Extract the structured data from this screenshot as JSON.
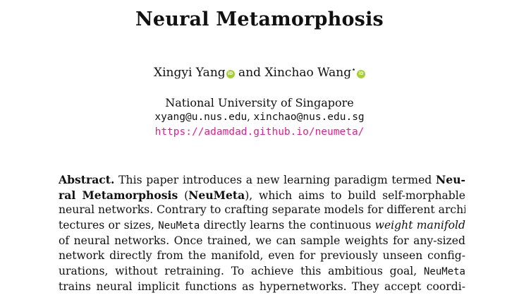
{
  "paper": {
    "title": "Neural Metamorphosis",
    "author1": "Xingyi Yang",
    "author_join": " and ",
    "author2": "Xinchao Wang",
    "author2_mark": "⋆",
    "orcid_label": "iD",
    "affiliation": "National University of Singapore",
    "email1": "xyang@u.nus.edu",
    "email_sep": ", ",
    "email2": "xinchao@nus.edu.sg",
    "url": "https://adamdad.github.io/neumeta/"
  },
  "abstract": {
    "heading": "Abstract.",
    "lines": [
      {
        "segments": [
          {
            "t": "Abstract.",
            "s": "b"
          },
          {
            "t": "  This paper introduces a new learning paradigm termed ",
            "s": ""
          },
          {
            "t": "Neu-",
            "s": "b"
          }
        ]
      },
      {
        "segments": [
          {
            "t": "ral Metamorphosis",
            "s": "b"
          },
          {
            "t": " (",
            "s": ""
          },
          {
            "t": "NeuMeta",
            "s": "b"
          },
          {
            "t": "), which aims to build self-morphable",
            "s": ""
          }
        ]
      },
      {
        "segments": [
          {
            "t": "neural networks. Contrary to crafting separate models for different archi-",
            "s": ""
          }
        ]
      },
      {
        "segments": [
          {
            "t": "tectures or sizes, ",
            "s": ""
          },
          {
            "t": "NeuMeta",
            "s": "tt"
          },
          {
            "t": " directly learns the continuous ",
            "s": ""
          },
          {
            "t": "weight manifold",
            "s": "i"
          }
        ]
      },
      {
        "segments": [
          {
            "t": "of neural networks. Once trained, we can sample weights for any-sized",
            "s": ""
          }
        ]
      },
      {
        "segments": [
          {
            "t": "network directly from the manifold, even for previously unseen config-",
            "s": ""
          }
        ]
      },
      {
        "segments": [
          {
            "t": "urations, without retraining. To achieve this ambitious goal, ",
            "s": ""
          },
          {
            "t": "NeuMeta",
            "s": "tt"
          }
        ]
      },
      {
        "segments": [
          {
            "t": "trains neural implicit functions as hypernetworks. They accept coordi-",
            "s": ""
          }
        ]
      }
    ]
  }
}
